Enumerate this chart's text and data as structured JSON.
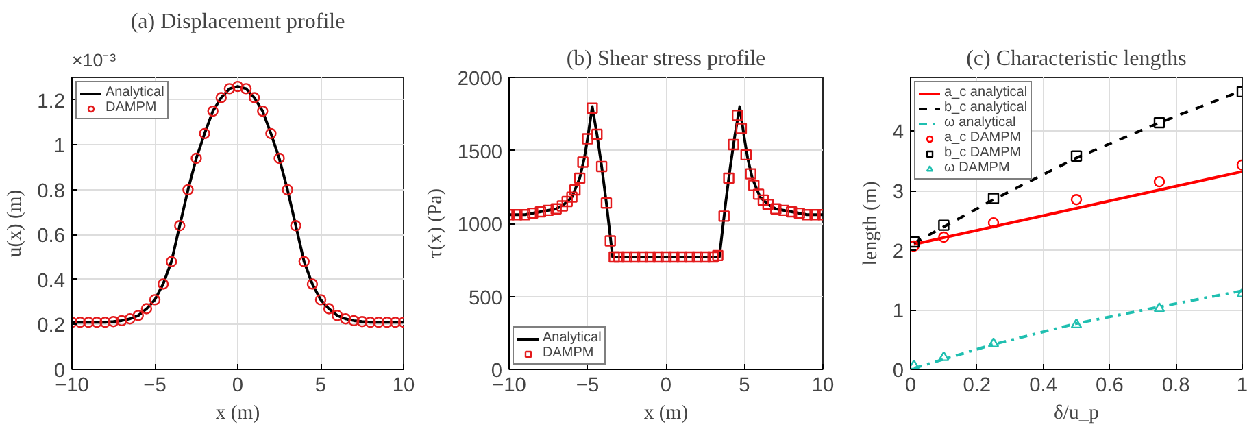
{
  "chart_data": [
    {
      "type": "line",
      "title": "(a) Displacement profile",
      "xlabel": "x (m)",
      "ylabel": "u(x) (m)",
      "annotations": [
        "×10⁻³"
      ],
      "xlim": [
        -10,
        10
      ],
      "xticks": [
        -10,
        -5,
        0,
        5,
        10
      ],
      "ylim": [
        0,
        1.3
      ],
      "yticks": [
        0,
        0.2,
        0.4,
        0.6,
        0.8,
        1,
        1.2
      ],
      "grid": true,
      "legend": "top left",
      "series": [
        {
          "name": "Analytical",
          "color": "#000000",
          "line_style": "solid",
          "x": [
            -10,
            -9,
            -8,
            -7.5,
            -7,
            -6.5,
            -6,
            -5.5,
            -5,
            -4.5,
            -4,
            -3.5,
            -3,
            -2.5,
            -2,
            -1.5,
            -1,
            -0.5,
            0,
            0.5,
            1,
            1.5,
            2,
            2.5,
            3,
            3.5,
            4,
            4.5,
            5,
            5.5,
            6,
            6.5,
            7,
            7.5,
            8,
            9,
            10
          ],
          "values": [
            0.21,
            0.21,
            0.21,
            0.213,
            0.217,
            0.225,
            0.24,
            0.27,
            0.31,
            0.38,
            0.48,
            0.64,
            0.8,
            0.94,
            1.05,
            1.15,
            1.21,
            1.25,
            1.26,
            1.25,
            1.21,
            1.15,
            1.05,
            0.94,
            0.8,
            0.64,
            0.48,
            0.38,
            0.31,
            0.27,
            0.24,
            0.225,
            0.217,
            0.213,
            0.21,
            0.21,
            0.21
          ]
        },
        {
          "name": "DAMPM",
          "type": "scatter",
          "marker": "circle",
          "color": "#e31a1c",
          "x": [
            -10,
            -9.5,
            -9,
            -8.5,
            -8,
            -7.5,
            -7,
            -6.5,
            -6,
            -5.5,
            -5,
            -4.5,
            -4,
            -3.5,
            -3,
            -2.5,
            -2,
            -1.5,
            -1,
            -0.5,
            0,
            0.5,
            1,
            1.5,
            2,
            2.5,
            3,
            3.5,
            4,
            4.5,
            5,
            5.5,
            6,
            6.5,
            7,
            7.5,
            8,
            8.5,
            9,
            9.5,
            10
          ],
          "values": [
            0.21,
            0.21,
            0.21,
            0.21,
            0.21,
            0.213,
            0.217,
            0.225,
            0.24,
            0.27,
            0.31,
            0.38,
            0.48,
            0.64,
            0.8,
            0.94,
            1.05,
            1.15,
            1.21,
            1.25,
            1.26,
            1.25,
            1.21,
            1.15,
            1.05,
            0.94,
            0.8,
            0.64,
            0.48,
            0.38,
            0.31,
            0.27,
            0.24,
            0.225,
            0.217,
            0.213,
            0.21,
            0.21,
            0.21,
            0.21,
            0.21
          ]
        }
      ]
    },
    {
      "type": "line",
      "title": "(b) Shear stress profile",
      "xlabel": "x (m)",
      "ylabel": "τ(x) (Pa)",
      "xlim": [
        -10,
        10
      ],
      "xticks": [
        -10,
        -5,
        0,
        5,
        10
      ],
      "ylim": [
        0,
        2000
      ],
      "yticks": [
        0,
        500,
        1000,
        1500,
        2000
      ],
      "grid": true,
      "legend": "bottom left",
      "series": [
        {
          "name": "Analytical",
          "color": "#000000",
          "line_style": "solid",
          "x": [
            -10,
            -9,
            -8,
            -7,
            -6.5,
            -6,
            -5.5,
            -5.2,
            -5,
            -4.7,
            -4.4,
            -4.1,
            -3.8,
            -3.4,
            3.4,
            3.8,
            4.1,
            4.4,
            4.7,
            5,
            5.2,
            5.5,
            6,
            6.5,
            7,
            8,
            9,
            10
          ],
          "values": [
            1060,
            1060,
            1080,
            1100,
            1130,
            1180,
            1310,
            1450,
            1580,
            1800,
            1610,
            1390,
            1140,
            770,
            770,
            1140,
            1390,
            1610,
            1800,
            1580,
            1450,
            1310,
            1180,
            1130,
            1100,
            1080,
            1060,
            1060
          ]
        },
        {
          "name": "DAMPM",
          "type": "scatter",
          "marker": "square",
          "color": "#e31a1c",
          "x": [
            -10,
            -9.5,
            -9,
            -8.5,
            -8,
            -7.5,
            -7,
            -6.6,
            -6.3,
            -6,
            -5.8,
            -5.5,
            -5.3,
            -5,
            -4.7,
            -4.4,
            -4.1,
            -3.8,
            -3.55,
            -3.3,
            -3,
            -2.5,
            -2,
            -1.5,
            -1,
            -0.5,
            0,
            0.5,
            1,
            1.5,
            2,
            2.5,
            3,
            3.3,
            3.7,
            4,
            4.3,
            4.55,
            4.8,
            5.1,
            5.4,
            5.6,
            5.9,
            6.2,
            6.5,
            7,
            7.5,
            8,
            8.5,
            9,
            9.5,
            10
          ],
          "values": [
            1060,
            1060,
            1060,
            1070,
            1080,
            1090,
            1100,
            1120,
            1150,
            1180,
            1230,
            1310,
            1420,
            1580,
            1790,
            1610,
            1390,
            1140,
            880,
            770,
            770,
            770,
            770,
            770,
            770,
            770,
            770,
            770,
            770,
            770,
            770,
            770,
            770,
            780,
            1050,
            1310,
            1540,
            1740,
            1650,
            1470,
            1340,
            1260,
            1200,
            1160,
            1130,
            1100,
            1090,
            1080,
            1070,
            1060,
            1060,
            1060
          ]
        }
      ]
    },
    {
      "type": "line",
      "title": "(c) Characteristic lengths",
      "xlabel": "δ/u_p",
      "ylabel": "length (m)",
      "xlim": [
        0,
        1
      ],
      "xticks": [
        0,
        0.2,
        0.4,
        0.6,
        0.8,
        1
      ],
      "ylim": [
        0,
        4.9
      ],
      "yticks": [
        0,
        1,
        2,
        3,
        4
      ],
      "grid": true,
      "legend": "top left",
      "series": [
        {
          "name": "a_c analytical",
          "color": "#ff0000",
          "line_style": "solid",
          "x": [
            0.01,
            1
          ],
          "values": [
            2.1,
            3.32
          ]
        },
        {
          "name": "b_c analytical",
          "color": "#000000",
          "line_style": "dashed",
          "x": [
            0.01,
            0.25,
            0.5,
            0.75,
            1
          ],
          "values": [
            2.12,
            2.85,
            3.55,
            4.14,
            4.68
          ]
        },
        {
          "name": "ω analytical",
          "color": "#1fbfb0",
          "line_style": "dashdot",
          "x": [
            0.01,
            0.25,
            0.5,
            0.75,
            1
          ],
          "values": [
            0.02,
            0.42,
            0.77,
            1.05,
            1.32
          ]
        },
        {
          "name": "a_c DAMPM",
          "type": "scatter",
          "marker": "circle",
          "color": "#ff0000",
          "x": [
            0.01,
            0.1,
            0.25,
            0.5,
            0.75,
            1
          ],
          "values": [
            2.07,
            2.22,
            2.46,
            2.85,
            3.15,
            3.43
          ]
        },
        {
          "name": "b_c DAMPM",
          "type": "scatter",
          "marker": "square",
          "color": "#000000",
          "x": [
            0.01,
            0.1,
            0.25,
            0.5,
            0.75,
            1
          ],
          "values": [
            2.14,
            2.42,
            2.87,
            3.58,
            4.14,
            4.66
          ]
        },
        {
          "name": "ω DAMPM",
          "type": "scatter",
          "marker": "triangle",
          "color": "#1fbfb0",
          "x": [
            0.01,
            0.1,
            0.25,
            0.5,
            0.75,
            1
          ],
          "values": [
            0.06,
            0.2,
            0.43,
            0.75,
            1.02,
            1.27
          ]
        }
      ]
    }
  ]
}
